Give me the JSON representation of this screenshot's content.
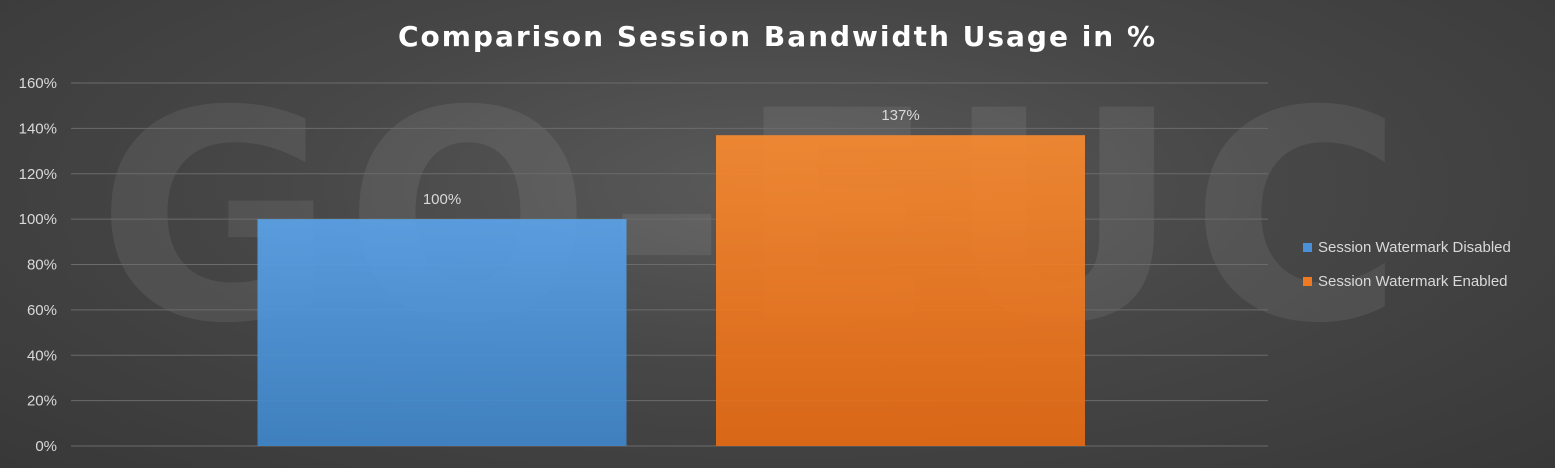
{
  "chart_data": {
    "type": "bar",
    "title": "Comparison Session Bandwidth Usage in %",
    "categories": [
      "Session Watermark Disabled",
      "Session Watermark Enabled"
    ],
    "values": [
      100,
      137
    ],
    "data_labels": [
      "100%",
      "137%"
    ],
    "colors": [
      "#4a90d9",
      "#f07a24"
    ],
    "yticks": [
      "0%",
      "20%",
      "40%",
      "60%",
      "80%",
      "100%",
      "120%",
      "140%",
      "160%"
    ],
    "ylim": [
      0,
      160
    ],
    "grid": true,
    "legend": "right",
    "watermark": "GO-EUC"
  }
}
